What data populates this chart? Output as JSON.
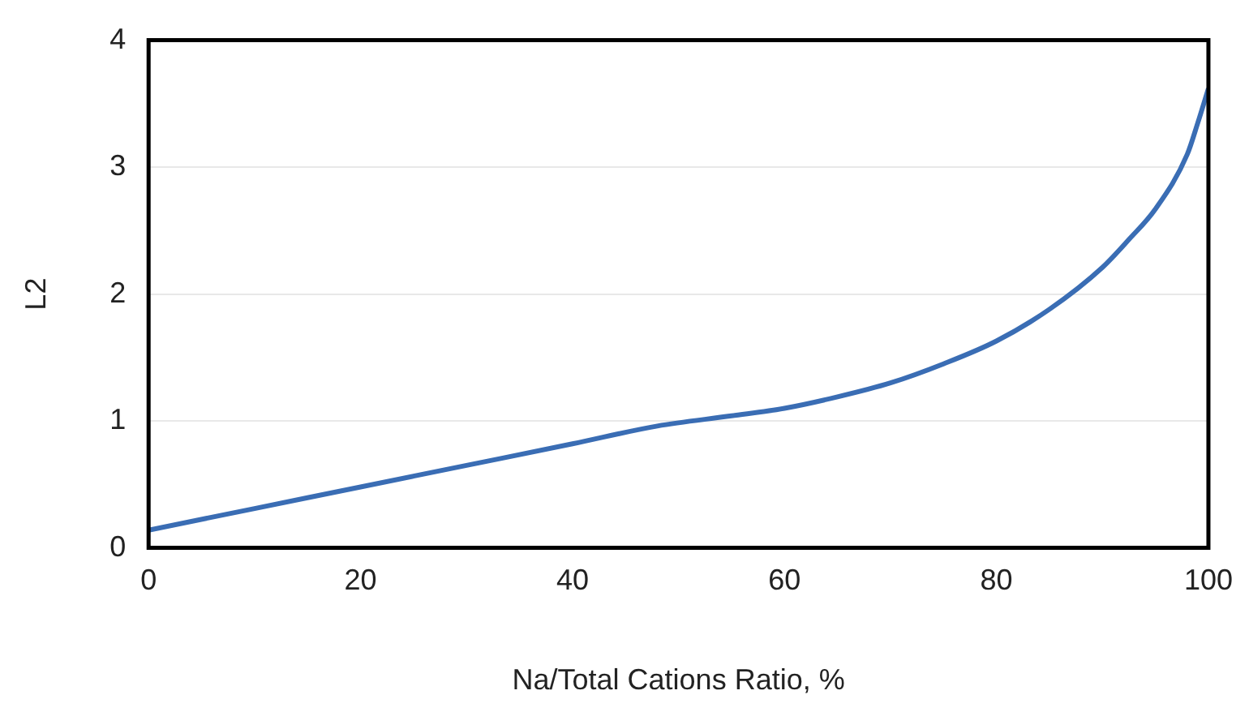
{
  "chart_data": {
    "type": "line",
    "xlabel": "Na/Total Cations Ratio, %",
    "ylabel": "L2",
    "x": [
      0,
      10,
      20,
      30,
      40,
      48,
      55,
      60,
      65,
      70,
      75,
      80,
      85,
      90,
      92.5,
      95,
      98,
      99,
      100
    ],
    "series": [
      {
        "color": "#3a6db4",
        "values": [
          0.14,
          0.31,
          0.48,
          0.65,
          0.82,
          0.96,
          1.04,
          1.1,
          1.19,
          1.3,
          1.45,
          1.63,
          1.88,
          2.21,
          2.43,
          2.67,
          3.1,
          3.35,
          3.62
        ]
      }
    ],
    "xlim": [
      0,
      100
    ],
    "xticks": [
      0,
      20,
      40,
      60,
      80,
      100
    ],
    "ylim": [
      0,
      4
    ],
    "yticks": [
      0,
      1,
      2,
      3,
      4
    ],
    "grid": "y",
    "legend": false,
    "marker": "none",
    "line_style": "solid"
  }
}
